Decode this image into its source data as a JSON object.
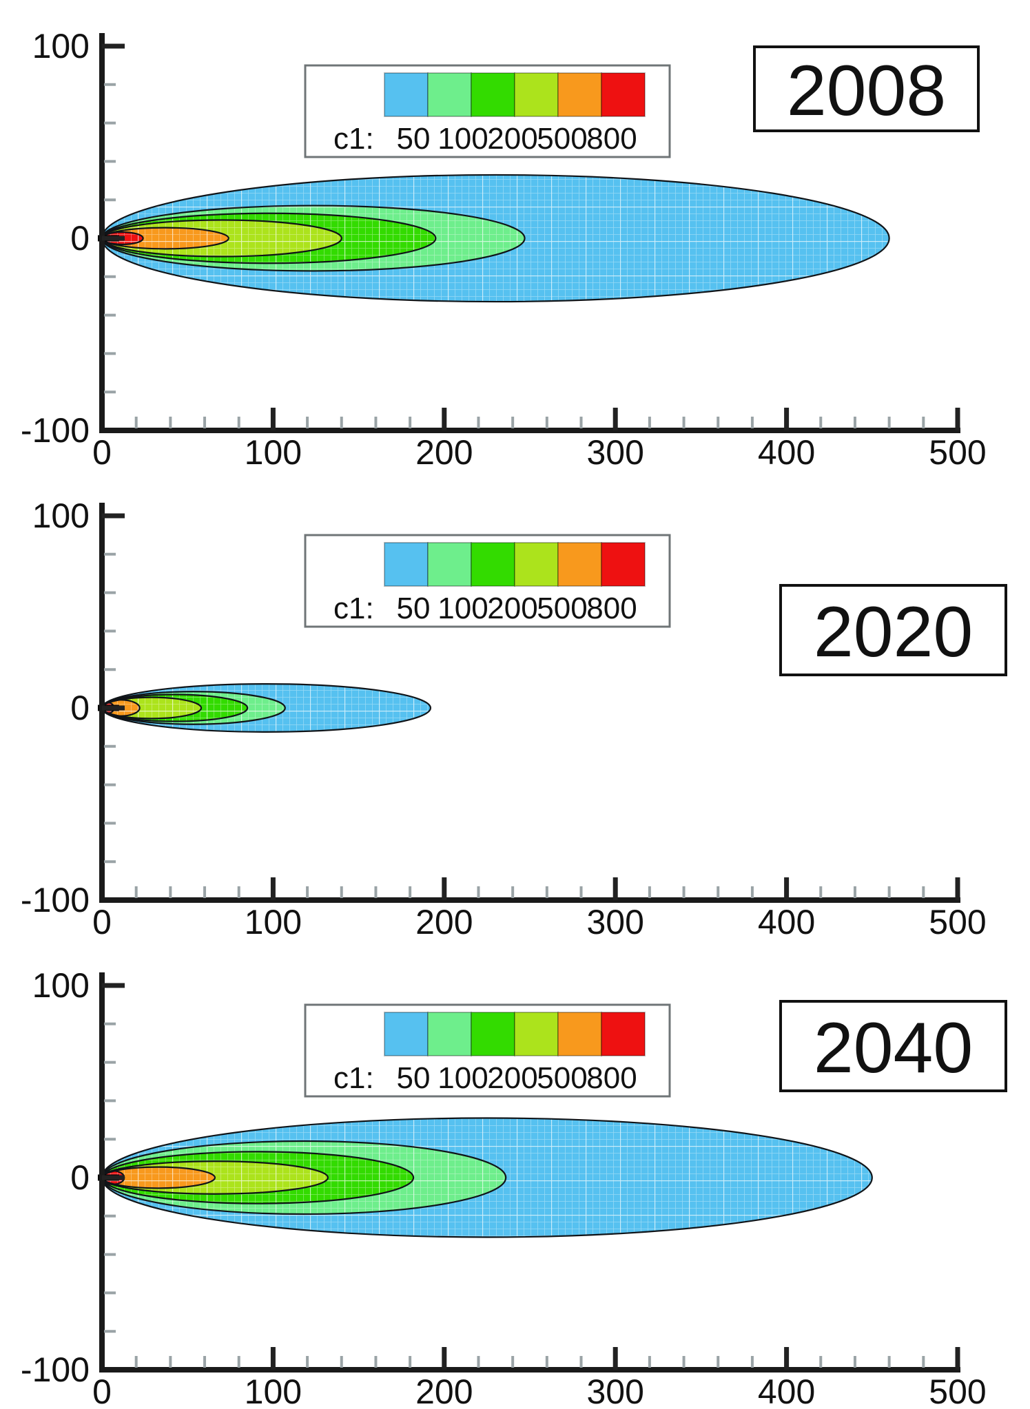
{
  "figure": {
    "background": "#ffffff"
  },
  "legend": {
    "variable_label": "c1:",
    "tick_labels": [
      "50",
      "100",
      "200",
      "500",
      "800"
    ]
  },
  "axes": {
    "x_tick_labels": [
      "0",
      "100",
      "200",
      "300",
      "400",
      "500"
    ],
    "y_tick_labels": [
      "100",
      "0",
      "-100"
    ],
    "x_range": [
      0,
      500
    ],
    "y_range": [
      -100,
      100
    ],
    "minor_tick_step": 20
  },
  "panel_years": [
    "2008",
    "2020",
    "2040"
  ],
  "colors": {
    "blue": "#56C1F0",
    "light_green": "#6EEE8C",
    "green": "#33DB00",
    "chartreuse": "#ACE31C",
    "orange": "#F8991D",
    "red": "#EE1111",
    "contour_line": "#101418",
    "axis": "#1a1a1a",
    "major_tick": "#222222",
    "minor_tick": "#9aa3a6",
    "text": "#111111",
    "legend_border": "#6f7577",
    "box_border": "#111111",
    "mesh_line": "rgba(255,255,255,0.38)",
    "mesh_line_bold": "rgba(255,255,255,0.55)"
  },
  "chart_data": {
    "type": "contour",
    "variable": "c1",
    "levels": [
      50,
      100,
      200,
      500,
      800
    ],
    "xlim": [
      0,
      500
    ],
    "ylim": [
      -100,
      100
    ],
    "x_ticks": [
      0,
      100,
      200,
      300,
      400,
      500
    ],
    "y_ticks": [
      100,
      0,
      -100
    ],
    "minor_tick_step": 20,
    "bands_order": [
      "blue",
      "light_green",
      "green",
      "chartreuse",
      "orange",
      "red"
    ],
    "band_ranges": [
      "c1 < 50",
      "50-100",
      "100-200",
      "200-500",
      "500-800",
      "c1 > 800"
    ],
    "source_marker": {
      "x_start": 0,
      "x_end": 10,
      "y": 0
    },
    "panels": [
      {
        "year": "2008",
        "bands": [
          {
            "color": "blue",
            "x_extent": 460,
            "y_half_width": 33.0
          },
          {
            "color": "light_green",
            "x_extent": 247,
            "y_half_width": 17.0
          },
          {
            "color": "green",
            "x_extent": 195,
            "y_half_width": 13.0
          },
          {
            "color": "chartreuse",
            "x_extent": 140,
            "y_half_width": 9.5
          },
          {
            "color": "orange",
            "x_extent": 74,
            "y_half_width": 5.5
          },
          {
            "color": "red",
            "x_extent": 24,
            "y_half_width": 3.2
          }
        ]
      },
      {
        "year": "2020",
        "bands": [
          {
            "color": "blue",
            "x_extent": 192,
            "y_half_width": 12.5
          },
          {
            "color": "light_green",
            "x_extent": 107,
            "y_half_width": 8.5
          },
          {
            "color": "green",
            "x_extent": 85,
            "y_half_width": 7.0
          },
          {
            "color": "chartreuse",
            "x_extent": 58,
            "y_half_width": 5.5
          },
          {
            "color": "orange",
            "x_extent": 22,
            "y_half_width": 4.2
          },
          {
            "color": "red",
            "x_extent": 7,
            "y_half_width": 2.8
          }
        ]
      },
      {
        "year": "2040",
        "bands": [
          {
            "color": "blue",
            "x_extent": 450,
            "y_half_width": 31.0
          },
          {
            "color": "light_green",
            "x_extent": 236,
            "y_half_width": 19.0
          },
          {
            "color": "green",
            "x_extent": 182,
            "y_half_width": 13.5
          },
          {
            "color": "chartreuse",
            "x_extent": 132,
            "y_half_width": 8.5
          },
          {
            "color": "orange",
            "x_extent": 66,
            "y_half_width": 5.5
          },
          {
            "color": "red",
            "x_extent": 13,
            "y_half_width": 3.5
          }
        ]
      }
    ]
  }
}
